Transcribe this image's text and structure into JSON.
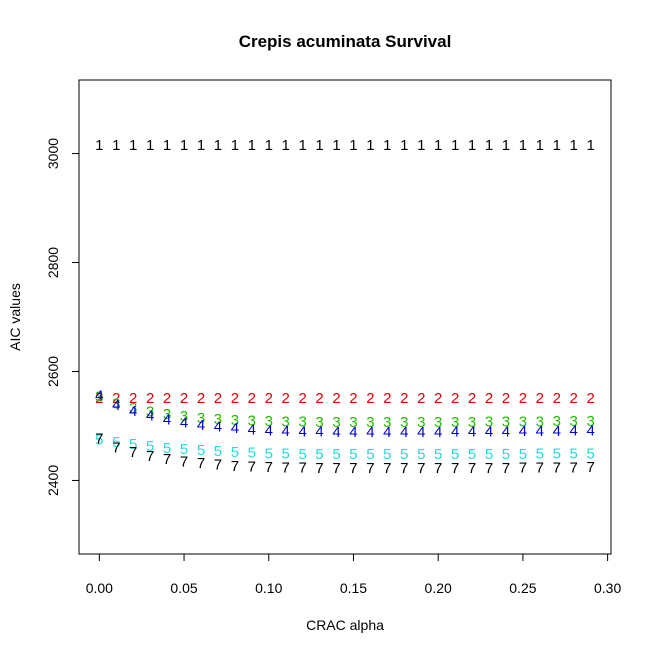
{
  "chart_data": {
    "type": "scatter",
    "title": "Crepis acuminata Survival",
    "xlabel": "CRAC alpha",
    "ylabel": "AIC values",
    "xlim": [
      -0.012,
      0.302
    ],
    "ylim": [
      2265,
      3135
    ],
    "x_ticks": [
      0.0,
      0.05,
      0.1,
      0.15,
      0.2,
      0.25,
      0.3
    ],
    "x_tick_labels": [
      "0.00",
      "0.05",
      "0.10",
      "0.15",
      "0.20",
      "0.25",
      "0.30"
    ],
    "y_ticks": [
      2400,
      2600,
      2800,
      3000
    ],
    "y_tick_labels": [
      "2400",
      "2600",
      "2800",
      "3000"
    ],
    "x": [
      0.0,
      0.01,
      0.02,
      0.03,
      0.04,
      0.05,
      0.06,
      0.07,
      0.08,
      0.09,
      0.1,
      0.11,
      0.12,
      0.13,
      0.14,
      0.15,
      0.16,
      0.17,
      0.18,
      0.19,
      0.2,
      0.21,
      0.22,
      0.23,
      0.24,
      0.25,
      0.26,
      0.27,
      0.28,
      0.29
    ],
    "series": [
      {
        "symbol": "1",
        "color": "#000000",
        "values": [
          3015,
          3015,
          3015,
          3015,
          3015,
          3015,
          3015,
          3015,
          3015,
          3015,
          3015,
          3015,
          3015,
          3015,
          3015,
          3015,
          3015,
          3015,
          3015,
          3015,
          3015,
          3015,
          3015,
          3015,
          3015,
          3015,
          3015,
          3015,
          3015,
          3015
        ]
      },
      {
        "symbol": "2",
        "color": "#df0000",
        "values": [
          2550,
          2550,
          2550,
          2550,
          2550,
          2550,
          2550,
          2550,
          2550,
          2550,
          2550,
          2550,
          2550,
          2550,
          2550,
          2550,
          2550,
          2550,
          2550,
          2550,
          2550,
          2550,
          2550,
          2550,
          2550,
          2550,
          2550,
          2550,
          2550,
          2550
        ]
      },
      {
        "symbol": "3",
        "color": "#22bb00",
        "values": [
          2553,
          2540,
          2532,
          2526,
          2521,
          2517,
          2514,
          2512,
          2510,
          2509,
          2508,
          2507,
          2507,
          2506,
          2506,
          2506,
          2506,
          2506,
          2506,
          2506,
          2506,
          2506,
          2506,
          2507,
          2507,
          2507,
          2507,
          2508,
          2508,
          2508
        ]
      },
      {
        "symbol": "4",
        "color": "#0000cc",
        "values": [
          2555,
          2538,
          2527,
          2518,
          2511,
          2505,
          2501,
          2498,
          2495,
          2493,
          2491,
          2490,
          2489,
          2489,
          2488,
          2488,
          2488,
          2488,
          2488,
          2488,
          2488,
          2489,
          2489,
          2489,
          2489,
          2490,
          2490,
          2490,
          2491,
          2491
        ]
      },
      {
        "symbol": "5",
        "color": "#22dddd",
        "values": [
          2474,
          2470,
          2466,
          2462,
          2459,
          2457,
          2455,
          2453,
          2451,
          2450,
          2449,
          2449,
          2448,
          2448,
          2448,
          2448,
          2448,
          2448,
          2448,
          2448,
          2448,
          2448,
          2448,
          2448,
          2448,
          2448,
          2449,
          2449,
          2449,
          2449
        ]
      },
      {
        "symbol": "7",
        "color": "#000000",
        "values": [
          2476,
          2460,
          2451,
          2444,
          2438,
          2434,
          2431,
          2428,
          2426,
          2425,
          2424,
          2423,
          2423,
          2422,
          2422,
          2422,
          2422,
          2422,
          2422,
          2422,
          2422,
          2422,
          2422,
          2422,
          2422,
          2423,
          2423,
          2423,
          2423,
          2424
        ]
      }
    ],
    "grid": false,
    "legend": "none"
  }
}
